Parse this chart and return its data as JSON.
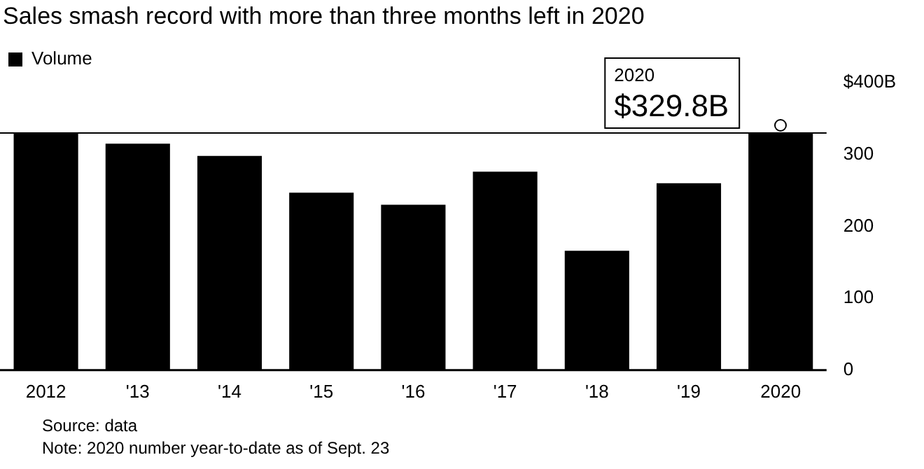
{
  "chart_data": {
    "type": "bar",
    "title": "Sales smash record with more than three months left in 2020",
    "categories": [
      "2012",
      "'13",
      "'14",
      "'15",
      "'16",
      "'17",
      "'18",
      "'19",
      "2020"
    ],
    "series": [
      {
        "name": "Volume",
        "color": "#000000",
        "values": [
          330,
          315,
          298,
          247,
          230,
          276,
          166,
          260,
          329.8
        ]
      }
    ],
    "ylim": [
      0,
      400
    ],
    "yticks": [
      0,
      100,
      200,
      300,
      {
        "value": 400,
        "label": "$400B"
      }
    ],
    "grid": false,
    "legend": "top left",
    "ref_lines": [
      {
        "axis": "y",
        "value": 329.8,
        "color": "#000000"
      }
    ],
    "annotations": [
      {
        "text": "2020\n$329.8B",
        "x": "2020",
        "y": 329.8
      },
      "Source: data",
      "Note: 2020 number year-to-date as of Sept. 23"
    ]
  }
}
